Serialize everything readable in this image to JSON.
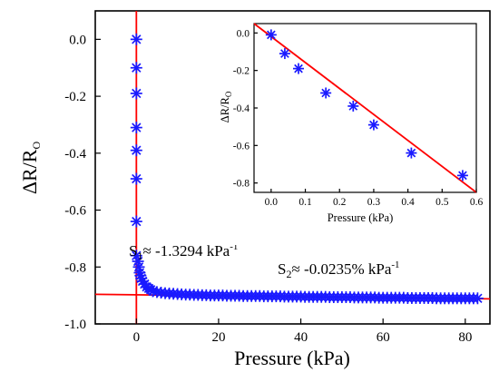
{
  "chart_data": [
    {
      "type": "scatter",
      "title": "",
      "xlabel": "Pressure (kPa)",
      "ylabel": "ΔR/R",
      "ylabel_sub": "O",
      "xlim": [
        -10,
        86
      ],
      "ylim": [
        -1.0,
        0.1
      ],
      "x_ticks": [
        0,
        20,
        40,
        60,
        80
      ],
      "y_ticks": [
        0.0,
        -0.2,
        -0.4,
        -0.6,
        -0.8,
        -1.0
      ],
      "y_tick_labels": [
        "0.0",
        "-0.2",
        "-0.4",
        "-0.6",
        "-0.8",
        "-1.0"
      ],
      "grid": false,
      "marker": "asterisk",
      "marker_color": "#1a1aff",
      "fit_color": "#ff0000",
      "series": [
        {
          "x": [
            0,
            0,
            0,
            0,
            0,
            0,
            0,
            0,
            0.4,
            0.6,
            0.8,
            1.0,
            1.2,
            1.5,
            2,
            2.5,
            3,
            3.5,
            4,
            5,
            6,
            7,
            8,
            9,
            10,
            11,
            12,
            13,
            14,
            15,
            16,
            17,
            18,
            19,
            20,
            21,
            22,
            23,
            24,
            25,
            26,
            27,
            28,
            29,
            30,
            31,
            32,
            33,
            34,
            35,
            36,
            37,
            38,
            39,
            40,
            41,
            42,
            43,
            44,
            45,
            46,
            47,
            48,
            49,
            50,
            51,
            52,
            53,
            54,
            55,
            56,
            57,
            58,
            59,
            60,
            61,
            62,
            63,
            64,
            65,
            66,
            67,
            68,
            69,
            70,
            71,
            72,
            73,
            74,
            75,
            76,
            77,
            78,
            79,
            80,
            81,
            82,
            83
          ],
          "y": [
            0.0,
            -0.1,
            -0.19,
            -0.31,
            -0.39,
            -0.49,
            -0.64,
            -0.76,
            -0.78,
            -0.8,
            -0.82,
            -0.83,
            -0.84,
            -0.85,
            -0.86,
            -0.87,
            -0.875,
            -0.88,
            -0.885,
            -0.888,
            -0.89,
            -0.892,
            -0.893,
            -0.894,
            -0.895,
            -0.896,
            -0.897,
            -0.897,
            -0.898,
            -0.898,
            -0.899,
            -0.899,
            -0.9,
            -0.9,
            -0.9,
            -0.9,
            -0.901,
            -0.901,
            -0.901,
            -0.901,
            -0.902,
            -0.902,
            -0.902,
            -0.902,
            -0.902,
            -0.903,
            -0.903,
            -0.903,
            -0.903,
            -0.903,
            -0.904,
            -0.904,
            -0.904,
            -0.904,
            -0.904,
            -0.905,
            -0.905,
            -0.905,
            -0.905,
            -0.905,
            -0.905,
            -0.906,
            -0.906,
            -0.906,
            -0.906,
            -0.906,
            -0.906,
            -0.907,
            -0.907,
            -0.907,
            -0.907,
            -0.907,
            -0.907,
            -0.908,
            -0.908,
            -0.908,
            -0.908,
            -0.908,
            -0.908,
            -0.908,
            -0.909,
            -0.909,
            -0.909,
            -0.909,
            -0.909,
            -0.909,
            -0.909,
            -0.91,
            -0.91,
            -0.91,
            -0.91,
            -0.91,
            -0.91,
            -0.91,
            -0.91,
            -0.91,
            -0.91,
            -0.91
          ]
        }
      ],
      "fits": [
        {
          "x": [
            0.0,
            0.0
          ],
          "y": [
            0.1,
            -1.0
          ]
        },
        {
          "x": [
            -10,
            86
          ],
          "y": [
            -0.896,
            -0.912
          ]
        }
      ],
      "annotations": [
        {
          "label": "S",
          "sub": "1",
          "text": "≈ -1.3294 kPa",
          "sup": "-1"
        },
        {
          "label": "S",
          "sub": "2",
          "text": "≈ -0.0235% kPa",
          "sup": "-1"
        }
      ]
    },
    {
      "type": "scatter",
      "title": "",
      "xlabel": "Pressure (kPa)",
      "ylabel": "ΔR/R",
      "ylabel_sub": "O",
      "xlim": [
        -0.05,
        0.6
      ],
      "ylim": [
        -0.85,
        0.05
      ],
      "x_ticks": [
        0.0,
        0.1,
        0.2,
        0.3,
        0.4,
        0.5,
        0.6
      ],
      "x_tick_labels": [
        "0.0",
        "0.1",
        "0.2",
        "0.3",
        "0.4",
        "0.5",
        "0.6"
      ],
      "y_ticks": [
        0.0,
        -0.2,
        -0.4,
        -0.6,
        -0.8
      ],
      "y_tick_labels": [
        "0.0",
        "-0.2",
        "-0.4",
        "-0.6",
        "-0.8"
      ],
      "grid": false,
      "marker": "asterisk",
      "marker_color": "#1a1aff",
      "fit_color": "#ff0000",
      "series": [
        {
          "x": [
            0.0,
            0.04,
            0.08,
            0.16,
            0.24,
            0.3,
            0.41,
            0.56
          ],
          "y": [
            -0.01,
            -0.11,
            -0.19,
            -0.32,
            -0.39,
            -0.49,
            -0.64,
            -0.76
          ]
        }
      ],
      "fits": [
        {
          "x": [
            -0.05,
            0.6
          ],
          "y": [
            0.055,
            -0.852
          ]
        }
      ]
    }
  ]
}
